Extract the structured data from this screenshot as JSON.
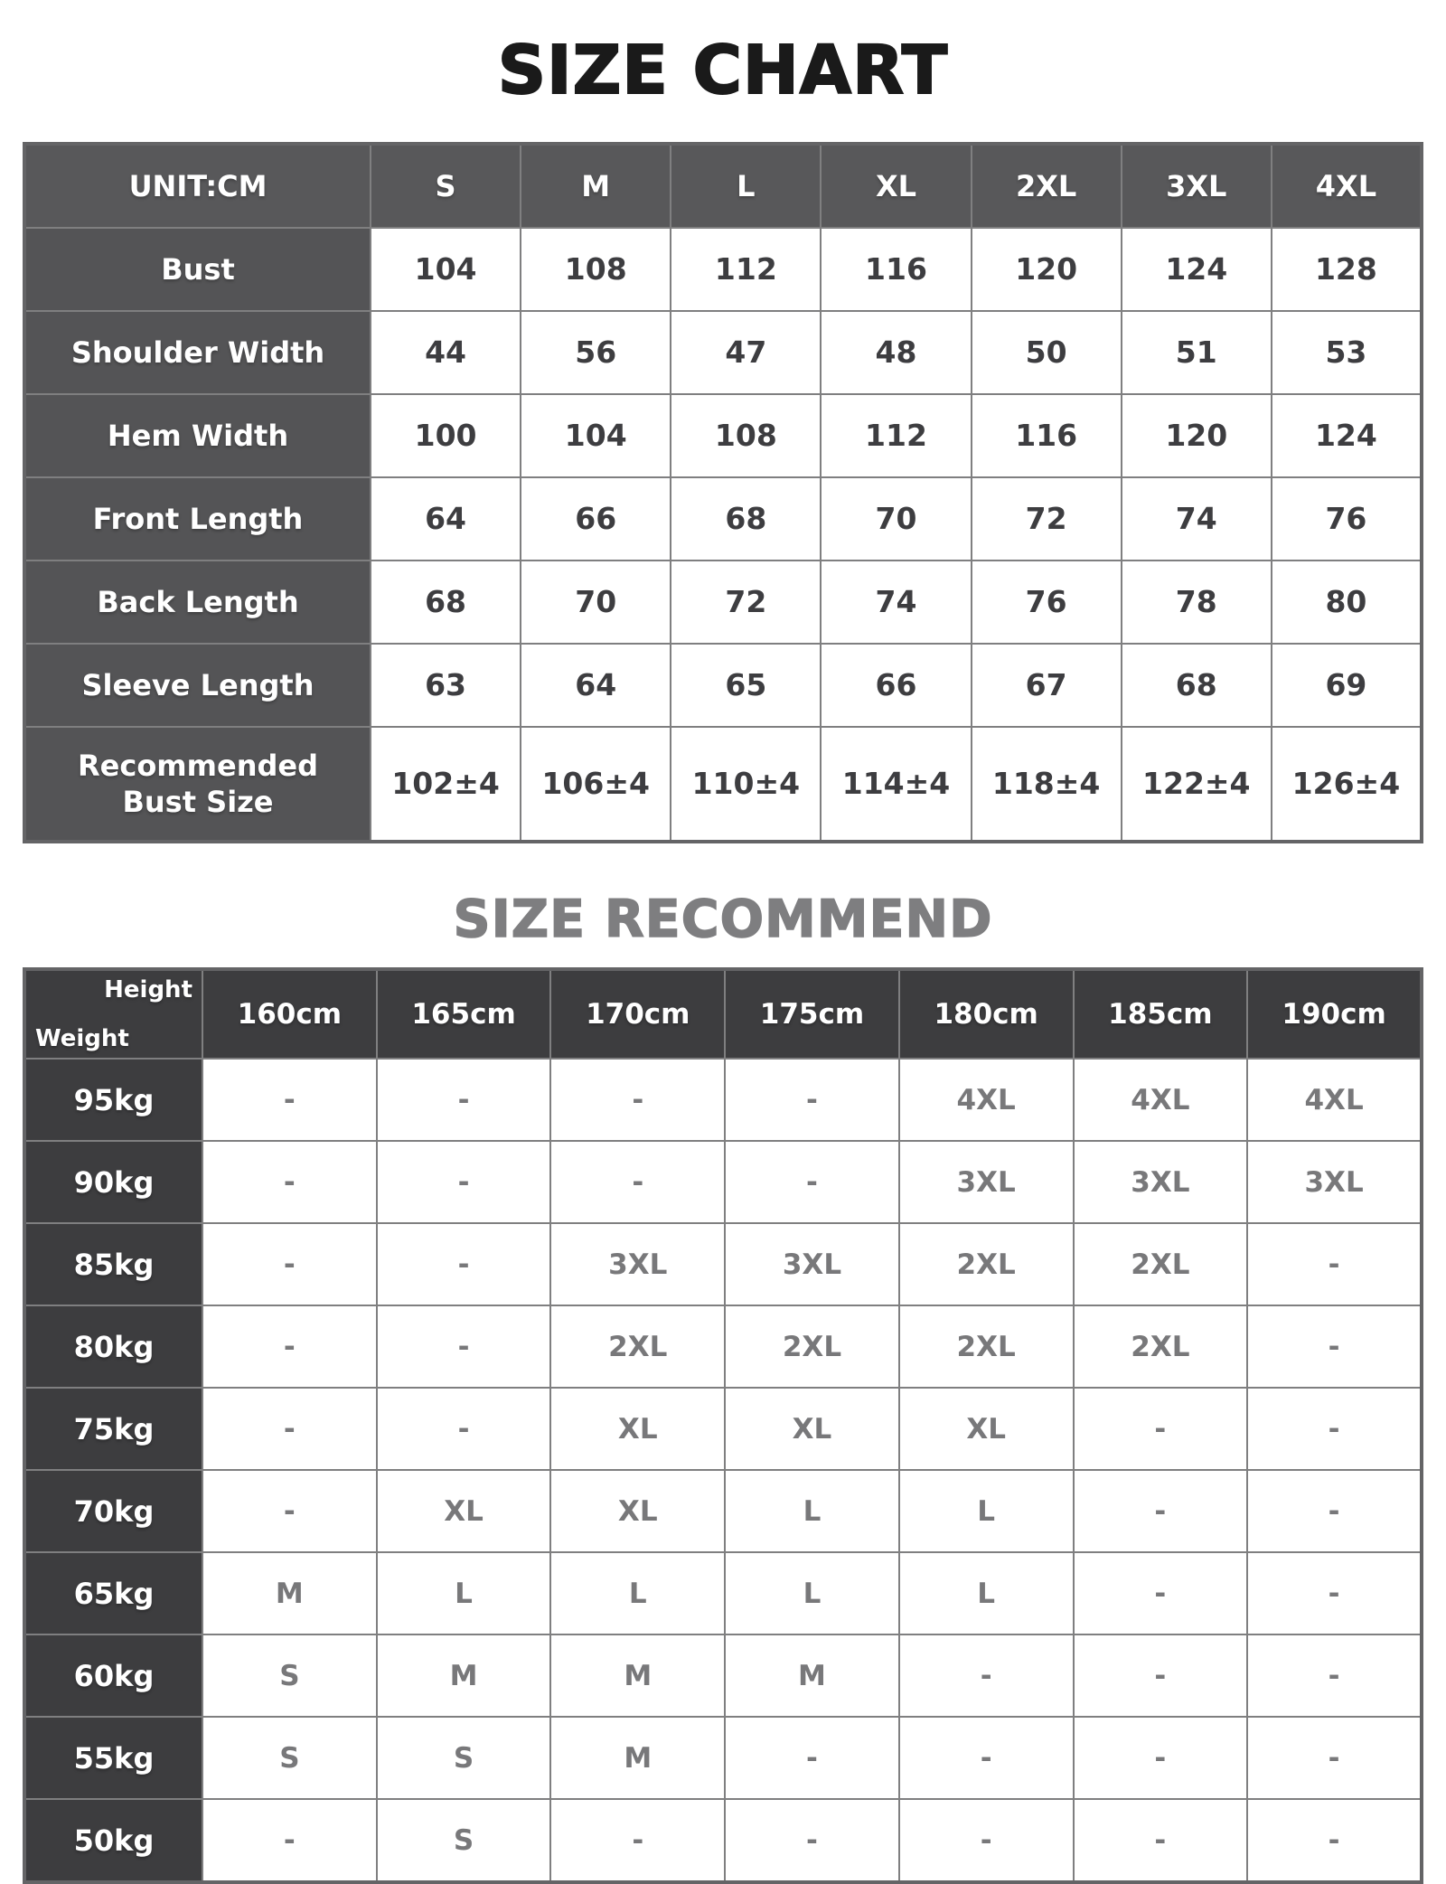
{
  "titles": {
    "size_chart": "SIZE CHART",
    "size_recommend": "SIZE RECOMMEND"
  },
  "colors": {
    "table1_header_bg": "#58585a",
    "table1_label_bg": "#545456",
    "table2_header_bg": "#3d3d3f",
    "grid_border": "#7f7f80",
    "outer_border": "#646466",
    "table1_value_text": "#3d3d40",
    "table2_value_text": "#78787a",
    "title_black": "#1a1a1a",
    "title_gray": "#7e7e80"
  },
  "size_chart": {
    "unit_label": "UNIT:CM",
    "columns": [
      "S",
      "M",
      "L",
      "XL",
      "2XL",
      "3XL",
      "4XL"
    ],
    "rows": [
      {
        "label": "Bust",
        "values": [
          "104",
          "108",
          "112",
          "116",
          "120",
          "124",
          "128"
        ]
      },
      {
        "label": "Shoulder Width",
        "values": [
          "44",
          "56",
          "47",
          "48",
          "50",
          "51",
          "53"
        ]
      },
      {
        "label": "Hem Width",
        "values": [
          "100",
          "104",
          "108",
          "112",
          "116",
          "120",
          "124"
        ]
      },
      {
        "label": "Front Length",
        "values": [
          "64",
          "66",
          "68",
          "70",
          "72",
          "74",
          "76"
        ]
      },
      {
        "label": "Back Length",
        "values": [
          "68",
          "70",
          "72",
          "74",
          "76",
          "78",
          "80"
        ]
      },
      {
        "label": "Sleeve Length",
        "values": [
          "63",
          "64",
          "65",
          "66",
          "67",
          "68",
          "69"
        ]
      },
      {
        "label": "Recommended\nBust Size",
        "values": [
          "102±4",
          "106±4",
          "110±4",
          "114±4",
          "118±4",
          "122±4",
          "126±4"
        ]
      }
    ]
  },
  "size_recommend": {
    "corner": {
      "height_label": "Height",
      "weight_label": "Weight"
    },
    "columns": [
      "160cm",
      "165cm",
      "170cm",
      "175cm",
      "180cm",
      "185cm",
      "190cm"
    ],
    "rows": [
      {
        "label": "95kg",
        "values": [
          "-",
          "-",
          "-",
          "-",
          "4XL",
          "4XL",
          "4XL"
        ]
      },
      {
        "label": "90kg",
        "values": [
          "-",
          "-",
          "-",
          "-",
          "3XL",
          "3XL",
          "3XL"
        ]
      },
      {
        "label": "85kg",
        "values": [
          "-",
          "-",
          "3XL",
          "3XL",
          "2XL",
          "2XL",
          "-"
        ]
      },
      {
        "label": "80kg",
        "values": [
          "-",
          "-",
          "2XL",
          "2XL",
          "2XL",
          "2XL",
          "-"
        ]
      },
      {
        "label": "75kg",
        "values": [
          "-",
          "-",
          "XL",
          "XL",
          "XL",
          "-",
          "-"
        ]
      },
      {
        "label": "70kg",
        "values": [
          "-",
          "XL",
          "XL",
          "L",
          "L",
          "-",
          "-"
        ]
      },
      {
        "label": "65kg",
        "values": [
          "M",
          "L",
          "L",
          "L",
          "L",
          "-",
          "-"
        ]
      },
      {
        "label": "60kg",
        "values": [
          "S",
          "M",
          "M",
          "M",
          "-",
          "-",
          "-"
        ]
      },
      {
        "label": "55kg",
        "values": [
          "S",
          "S",
          "M",
          "-",
          "-",
          "-",
          "-"
        ]
      },
      {
        "label": "50kg",
        "values": [
          "-",
          "S",
          "-",
          "-",
          "-",
          "-",
          "-"
        ]
      }
    ]
  },
  "chart_data": [
    {
      "type": "table",
      "title": "SIZE CHART",
      "columns": [
        "UNIT:CM",
        "S",
        "M",
        "L",
        "XL",
        "2XL",
        "3XL",
        "4XL"
      ],
      "rows": [
        [
          "Bust",
          104,
          108,
          112,
          116,
          120,
          124,
          128
        ],
        [
          "Shoulder Width",
          44,
          56,
          47,
          48,
          50,
          51,
          53
        ],
        [
          "Hem Width",
          100,
          104,
          108,
          112,
          116,
          120,
          124
        ],
        [
          "Front Length",
          64,
          66,
          68,
          70,
          72,
          74,
          76
        ],
        [
          "Back Length",
          68,
          70,
          72,
          74,
          76,
          78,
          80
        ],
        [
          "Sleeve Length",
          63,
          64,
          65,
          66,
          67,
          68,
          69
        ],
        [
          "Recommended Bust Size",
          "102±4",
          "106±4",
          "110±4",
          "114±4",
          "118±4",
          "122±4",
          "126±4"
        ]
      ]
    },
    {
      "type": "table",
      "title": "SIZE RECOMMEND",
      "columns": [
        "Height/Weight",
        "160cm",
        "165cm",
        "170cm",
        "175cm",
        "180cm",
        "185cm",
        "190cm"
      ],
      "rows": [
        [
          "95kg",
          "-",
          "-",
          "-",
          "-",
          "4XL",
          "4XL",
          "4XL"
        ],
        [
          "90kg",
          "-",
          "-",
          "-",
          "-",
          "3XL",
          "3XL",
          "3XL"
        ],
        [
          "85kg",
          "-",
          "-",
          "3XL",
          "3XL",
          "2XL",
          "2XL",
          "-"
        ],
        [
          "80kg",
          "-",
          "-",
          "2XL",
          "2XL",
          "2XL",
          "2XL",
          "-"
        ],
        [
          "75kg",
          "-",
          "-",
          "XL",
          "XL",
          "XL",
          "-",
          "-"
        ],
        [
          "70kg",
          "-",
          "XL",
          "XL",
          "L",
          "L",
          "-",
          "-"
        ],
        [
          "65kg",
          "M",
          "L",
          "L",
          "L",
          "L",
          "-",
          "-"
        ],
        [
          "60kg",
          "S",
          "M",
          "M",
          "M",
          "-",
          "-",
          "-"
        ],
        [
          "55kg",
          "S",
          "S",
          "M",
          "-",
          "-",
          "-",
          "-"
        ],
        [
          "50kg",
          "-",
          "S",
          "-",
          "-",
          "-",
          "-",
          "-"
        ]
      ]
    }
  ]
}
